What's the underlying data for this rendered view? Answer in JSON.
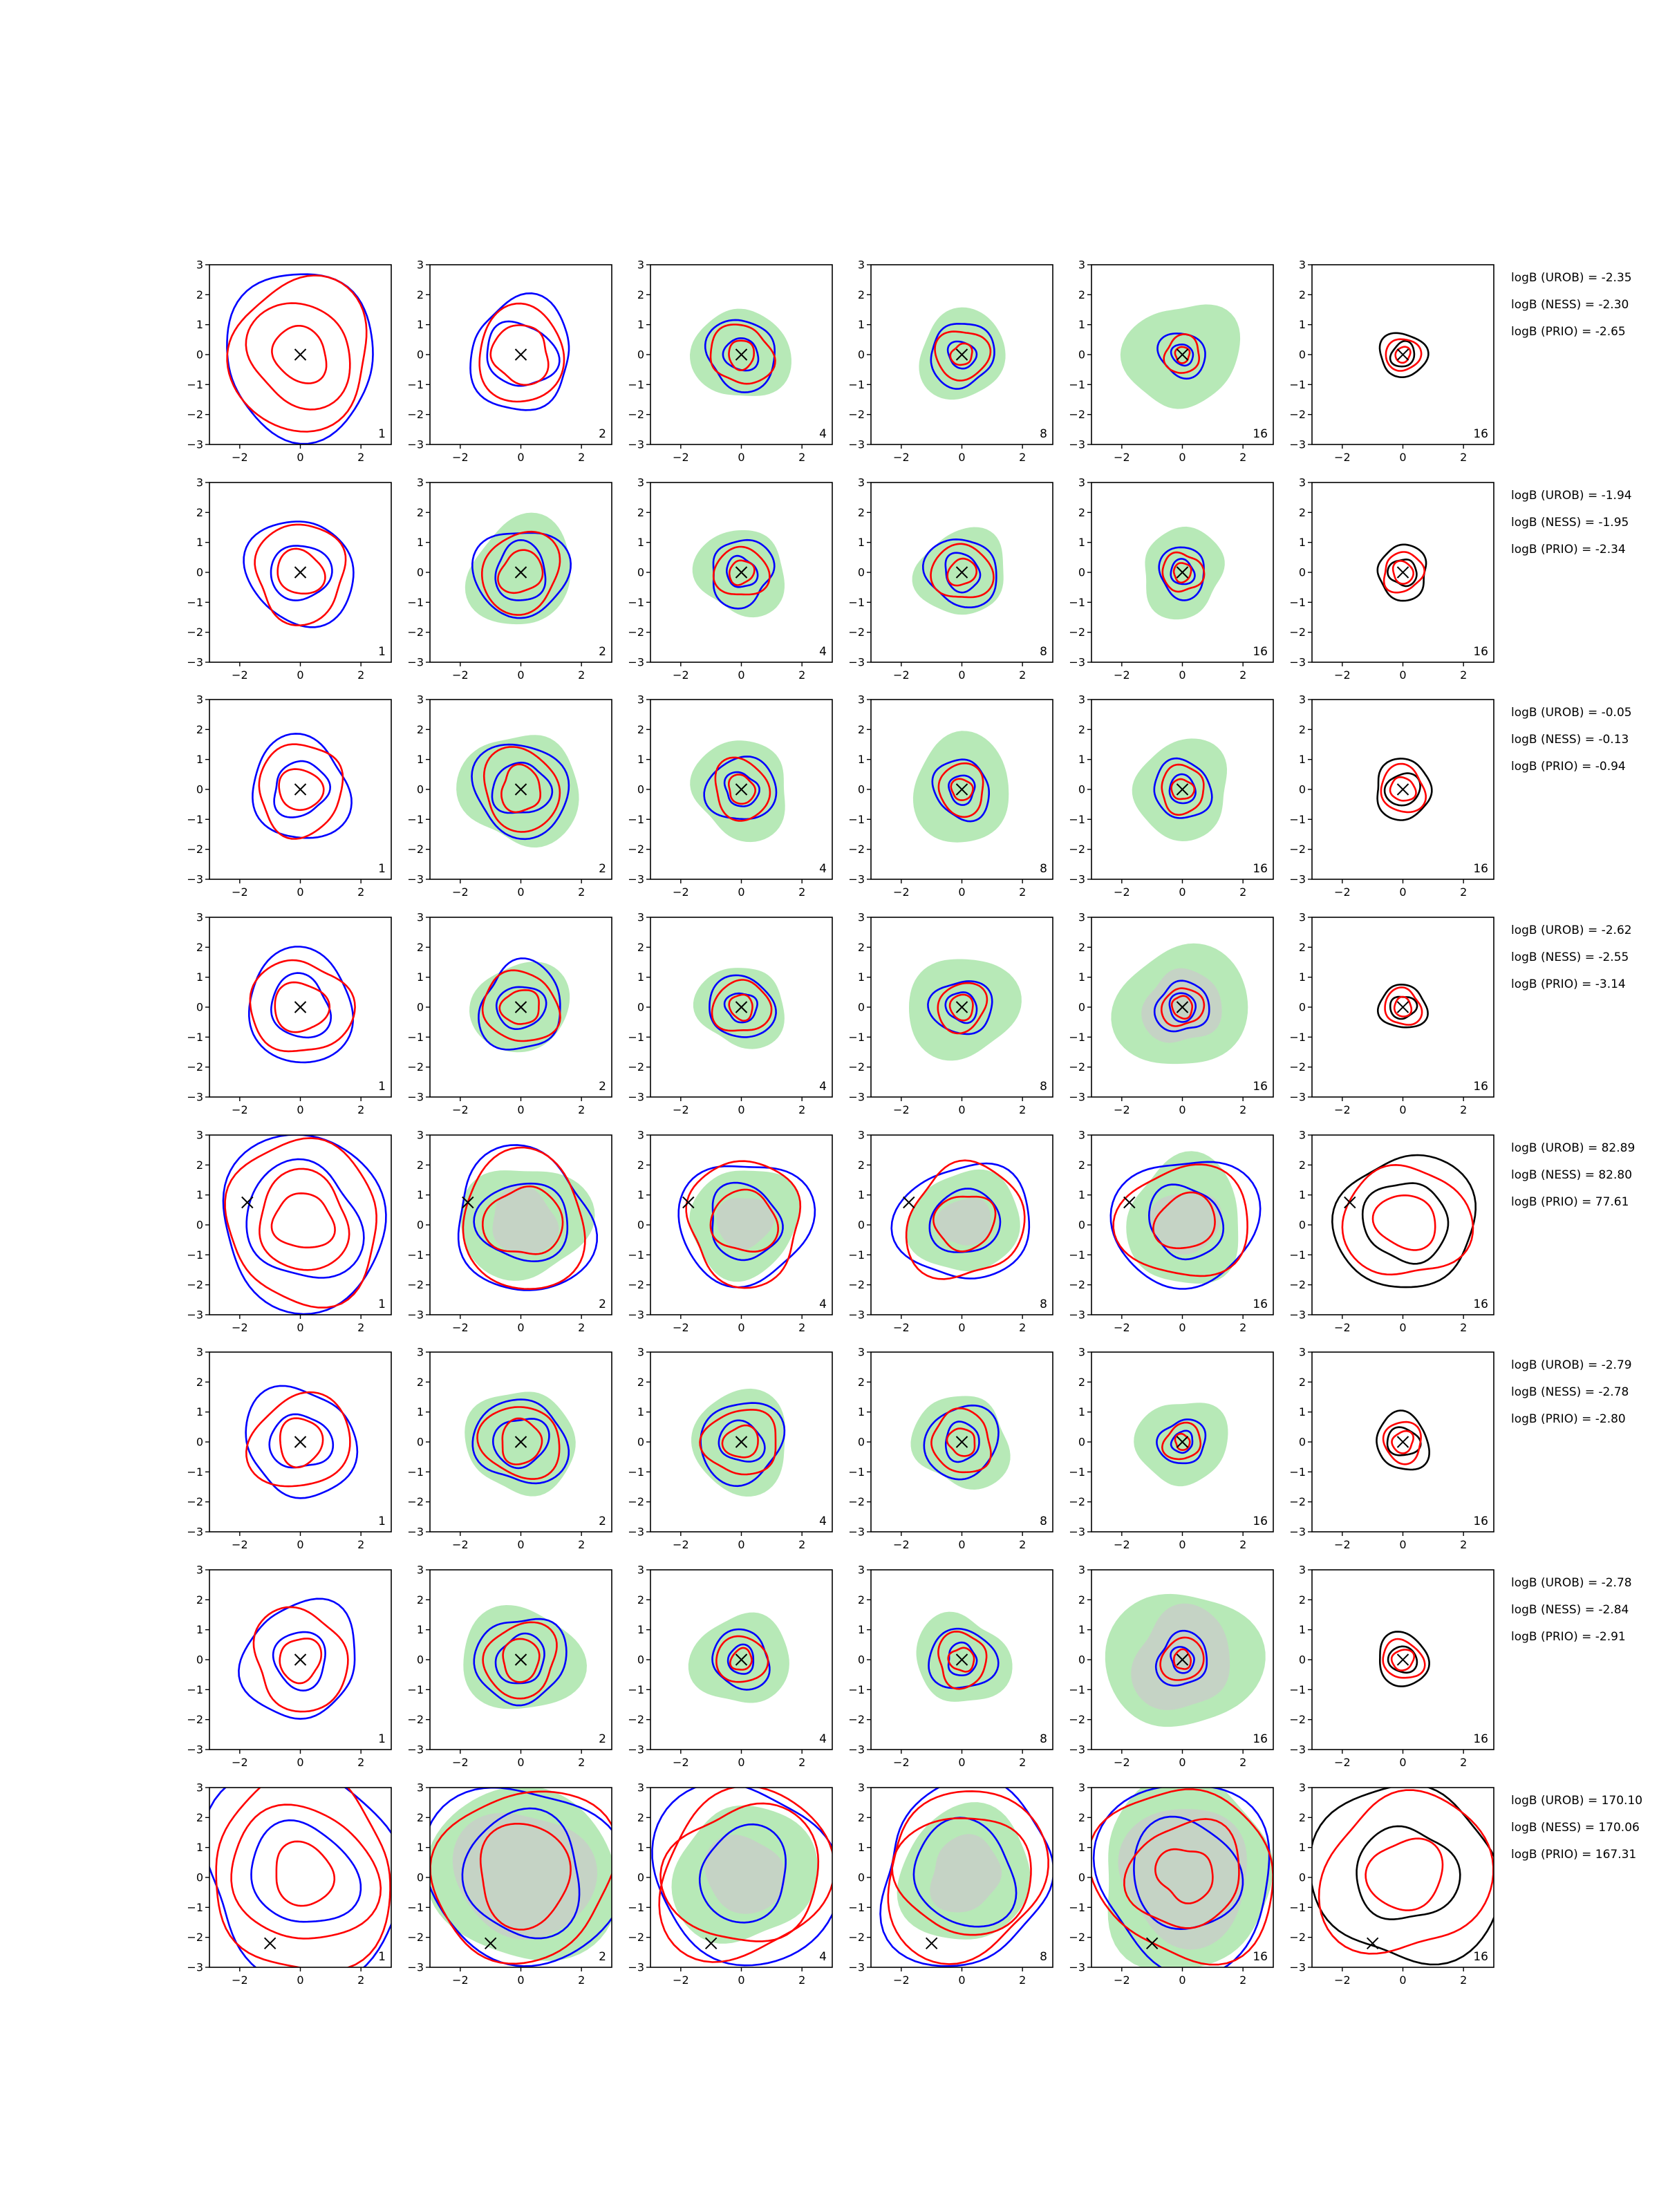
{
  "chart_data": {
    "type": "contour-grid",
    "title": "",
    "xlim": [
      -3,
      3
    ],
    "ylim": [
      -3,
      3
    ],
    "xticks": [
      -2,
      0,
      2
    ],
    "yticks": [
      -3,
      -2,
      -1,
      0,
      1,
      2,
      3
    ],
    "grid": false,
    "colors": {
      "blue": "#0000ff",
      "red": "#ff0000",
      "black": "#000000",
      "green_fill": "#b7e9b7",
      "gray_fill": "#c8cfc8",
      "marker": "#000000"
    },
    "column_labels": [
      "1",
      "2",
      "4",
      "8",
      "16",
      "16"
    ],
    "rows": [
      {
        "marker": [
          0,
          0
        ],
        "logb": [
          "logB (UROB) = -2.35",
          "logB (NESS) = -2.30",
          "logB (PRIO) = -2.65"
        ],
        "panels": [
          {
            "green": [],
            "blue": [
              2.6
            ],
            "red": [
              2.4,
              1.7,
              0.9
            ]
          },
          {
            "green": [],
            "blue": [
              1.75,
              1.1
            ],
            "red": [
              1.5,
              0.95
            ]
          },
          {
            "green": [
              1.55
            ],
            "blue": [
              1.15,
              0.55
            ],
            "red": [
              1.0,
              0.45
            ]
          },
          {
            "green": [
              1.45
            ],
            "blue": [
              1.05,
              0.45
            ],
            "red": [
              0.85,
              0.35
            ]
          },
          {
            "green": [
              1.8
            ],
            "blue": [
              0.75,
              0.35
            ],
            "red": [
              0.6,
              0.25
            ]
          },
          {
            "green": [],
            "black": [
              0.75,
              0.4
            ],
            "red": [
              0.55,
              0.25
            ]
          }
        ]
      },
      {
        "marker": [
          0,
          0
        ],
        "logb": [
          "logB (UROB) = -1.94",
          "logB (NESS) = -1.95",
          "logB (PRIO) = -2.34"
        ],
        "panels": [
          {
            "green": [],
            "blue": [
              1.75,
              0.95
            ],
            "red": [
              1.55,
              0.75
            ]
          },
          {
            "green": [
              1.75
            ],
            "blue": [
              1.5,
              0.9
            ],
            "red": [
              1.3,
              0.7
            ]
          },
          {
            "green": [
              1.45
            ],
            "blue": [
              1.05,
              0.5
            ],
            "red": [
              0.85,
              0.4
            ]
          },
          {
            "green": [
              1.45
            ],
            "blue": [
              1.15,
              0.6
            ],
            "red": [
              0.95,
              0.45
            ]
          },
          {
            "green": [
              1.4
            ],
            "blue": [
              0.8,
              0.4
            ],
            "red": [
              0.65,
              0.3
            ]
          },
          {
            "green": [],
            "black": [
              0.85,
              0.45
            ],
            "red": [
              0.65,
              0.35
            ]
          }
        ]
      },
      {
        "marker": [
          0,
          0
        ],
        "logb": [
          "logB (UROB) = -0.05",
          "logB (NESS) = -0.13",
          "logB (PRIO) = -0.94"
        ],
        "panels": [
          {
            "green": [],
            "blue": [
              1.65,
              0.9
            ],
            "red": [
              1.45,
              0.7
            ]
          },
          {
            "green": [
              1.9
            ],
            "blue": [
              1.55,
              0.9
            ],
            "red": [
              1.3,
              0.7
            ]
          },
          {
            "green": [
              1.6
            ],
            "blue": [
              1.1,
              0.55
            ],
            "red": [
              0.95,
              0.45
            ]
          },
          {
            "green": [
              1.7
            ],
            "blue": [
              0.95,
              0.45
            ],
            "red": [
              0.8,
              0.35
            ]
          },
          {
            "green": [
              1.6
            ],
            "blue": [
              0.95,
              0.45
            ],
            "red": [
              0.75,
              0.35
            ]
          },
          {
            "green": [],
            "black": [
              0.95,
              0.55
            ],
            "red": [
              0.75,
              0.4
            ]
          }
        ]
      },
      {
        "marker": [
          0,
          0
        ],
        "logb": [
          "logB (UROB) = -2.62",
          "logB (NESS) = -2.55",
          "logB (PRIO) = -3.14"
        ],
        "panels": [
          {
            "green": [],
            "blue": [
              1.8,
              1.0
            ],
            "red": [
              1.6,
              0.85
            ]
          },
          {
            "green": [
              1.55
            ],
            "blue": [
              1.4,
              0.75
            ],
            "red": [
              1.2,
              0.6
            ]
          },
          {
            "green": [
              1.4
            ],
            "blue": [
              1.05,
              0.5
            ],
            "red": [
              0.9,
              0.4
            ]
          },
          {
            "green": [
              1.75
            ],
            "blue": [
              0.95,
              0.5
            ],
            "red": [
              0.8,
              0.4
            ]
          },
          {
            "green": [
              2.1
            ],
            "gray": [
              1.25
            ],
            "blue": [
              0.85,
              0.45
            ],
            "red": [
              0.65,
              0.35
            ]
          },
          {
            "green": [],
            "black": [
              0.75,
              0.4
            ],
            "red": [
              0.6,
              0.3
            ]
          }
        ]
      },
      {
        "marker": [
          -1.75,
          0.75
        ],
        "logb": [
          "logB (UROB) = 82.89",
          "logB (NESS) = 82.80",
          "logB (PRIO) = 77.61"
        ],
        "panels": [
          {
            "green": [],
            "blue": [
              2.8,
              1.9
            ],
            "red": [
              2.6,
              1.55,
              0.95
            ]
          },
          {
            "green": [
              2.0
            ],
            "gray": [
              1.1
            ],
            "blue": [
              2.3,
              1.4
            ],
            "red": [
              2.15,
              1.2
            ]
          },
          {
            "green": [
              1.8
            ],
            "gray": [
              0.9
            ],
            "blue": [
              2.1,
              1.2
            ],
            "red": [
              1.95,
              1.05
            ]
          },
          {
            "green": [
              1.75
            ],
            "gray": [
              0.85
            ],
            "blue": [
              2.05,
              1.1
            ],
            "red": [
              1.9,
              0.95
            ]
          },
          {
            "green": [
              2.0
            ],
            "gray": [
              1.1
            ],
            "blue": [
              2.25,
              1.2
            ],
            "red": [
              2.0,
              0.95
            ]
          },
          {
            "green": [],
            "black": [
              2.25,
              1.35
            ],
            "red": [
              1.95,
              0.95
            ]
          }
        ]
      },
      {
        "marker": [
          0,
          0
        ],
        "logb": [
          "logB (UROB) = -2.79",
          "logB (NESS) = -2.78",
          "logB (PRIO) = -2.80"
        ],
        "panels": [
          {
            "green": [],
            "blue": [
              1.8,
              0.95
            ],
            "red": [
              1.6,
              0.75
            ]
          },
          {
            "green": [
              1.75
            ],
            "blue": [
              1.45,
              0.85
            ],
            "red": [
              1.25,
              0.7
            ]
          },
          {
            "green": [
              1.65
            ],
            "blue": [
              1.35,
              0.7
            ],
            "red": [
              1.15,
              0.55
            ]
          },
          {
            "green": [
              1.55
            ],
            "blue": [
              1.2,
              0.6
            ],
            "red": [
              1.0,
              0.45
            ]
          },
          {
            "green": [
              1.45
            ],
            "blue": [
              0.75,
              0.35
            ],
            "red": [
              0.6,
              0.25
            ]
          },
          {
            "green": [],
            "black": [
              0.9,
              0.5
            ],
            "red": [
              0.65,
              0.35
            ]
          }
        ]
      },
      {
        "marker": [
          0,
          0
        ],
        "logb": [
          "logB (UROB) = -2.78",
          "logB (NESS) = -2.84",
          "logB (PRIO) = -2.91"
        ],
        "panels": [
          {
            "green": [],
            "blue": [
              1.9,
              0.9
            ],
            "red": [
              1.6,
              0.7
            ]
          },
          {
            "green": [
              1.85
            ],
            "blue": [
              1.45,
              0.8
            ],
            "red": [
              1.2,
              0.65
            ]
          },
          {
            "green": [
              1.55
            ],
            "blue": [
              0.95,
              0.45
            ],
            "red": [
              0.8,
              0.35
            ]
          },
          {
            "green": [
              1.5
            ],
            "blue": [
              1.05,
              0.5
            ],
            "red": [
              0.85,
              0.4
            ]
          },
          {
            "green": [
              2.4
            ],
            "gray": [
              1.65
            ],
            "blue": [
              0.85,
              0.4
            ],
            "red": [
              0.7,
              0.3
            ]
          },
          {
            "green": [],
            "black": [
              0.85,
              0.45
            ],
            "red": [
              0.65,
              0.35
            ]
          }
        ]
      },
      {
        "marker": [
          -1.0,
          -2.2
        ],
        "logb": [
          "logB (UROB) = 170.10",
          "logB (NESS) = 170.06",
          "logB (PRIO) = 167.31"
        ],
        "panels": [
          {
            "green": [],
            "blue": [
              3.4,
              1.7
            ],
            "red": [
              3.1,
              2.3,
              1.0
            ]
          },
          {
            "green": [
              3.0
            ],
            "gray": [
              2.2
            ],
            "blue": [
              3.1,
              2.0
            ],
            "red": [
              2.9,
              1.6
            ]
          },
          {
            "green": [
              2.3
            ],
            "gray": [
              1.3
            ],
            "blue": [
              3.0,
              1.5
            ],
            "red": [
              2.8,
              2.4
            ]
          },
          {
            "green": [
              2.2
            ],
            "gray": [
              1.2
            ],
            "blue": [
              2.9,
              1.7
            ],
            "red": [
              2.7,
              2.1
            ]
          },
          {
            "green": [
              3.0
            ],
            "gray": [
              2.2
            ],
            "blue": [
              3.0,
              1.8
            ],
            "red": [
              2.9,
              1.8,
              0.9
            ]
          },
          {
            "green": [],
            "black": [
              3.0,
              1.6
            ],
            "red": [
              2.7,
              1.2
            ]
          }
        ]
      }
    ]
  }
}
